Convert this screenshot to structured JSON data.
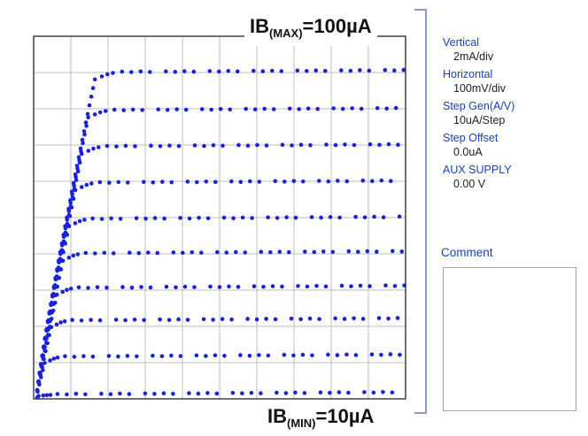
{
  "annotations": {
    "ib_max_prefix": "IB",
    "ib_max_sub": "(MAX)",
    "ib_max_value": "=100µA",
    "ib_min_prefix": "IB",
    "ib_min_sub": "(MIN)",
    "ib_min_value": "=10µA"
  },
  "settings": [
    {
      "label": "Vertical",
      "value": "2mA/div"
    },
    {
      "label": "Horizontal",
      "value": "100mV/div"
    },
    {
      "label": "Step Gen(A/V)",
      "value": "10uA/Step"
    },
    {
      "label": "Step Offset",
      "value": "0.0uA"
    },
    {
      "label": "AUX SUPPLY",
      "value": "0.00 V"
    }
  ],
  "comment": {
    "label": "Comment",
    "value": ""
  },
  "colors": {
    "trace": "#1a22d6",
    "grid": "#bdbdbd",
    "border": "#333333",
    "accent": "#1a3fb6"
  },
  "chart_data": {
    "type": "scatter",
    "xlabel": "",
    "ylabel": "",
    "x_divisions": 10,
    "y_divisions": 10,
    "horizontal_per_div": "100mV/div",
    "vertical_per_div": "2mA/div",
    "grid": true,
    "series": [
      {
        "step_current": "10uA",
        "saturation_div": 0.11
      },
      {
        "step_current": "20uA",
        "saturation_div": 1.15
      },
      {
        "step_current": "30uA",
        "saturation_div": 2.15
      },
      {
        "step_current": "40uA",
        "saturation_div": 3.05
      },
      {
        "step_current": "50uA",
        "saturation_div": 4.0
      },
      {
        "step_current": "60uA",
        "saturation_div": 4.95
      },
      {
        "step_current": "70uA",
        "saturation_div": 5.95
      },
      {
        "step_current": "80uA",
        "saturation_div": 6.95
      },
      {
        "step_current": "90uA",
        "saturation_div": 7.95
      },
      {
        "step_current": "100uA",
        "saturation_div": 9.0
      }
    ]
  }
}
